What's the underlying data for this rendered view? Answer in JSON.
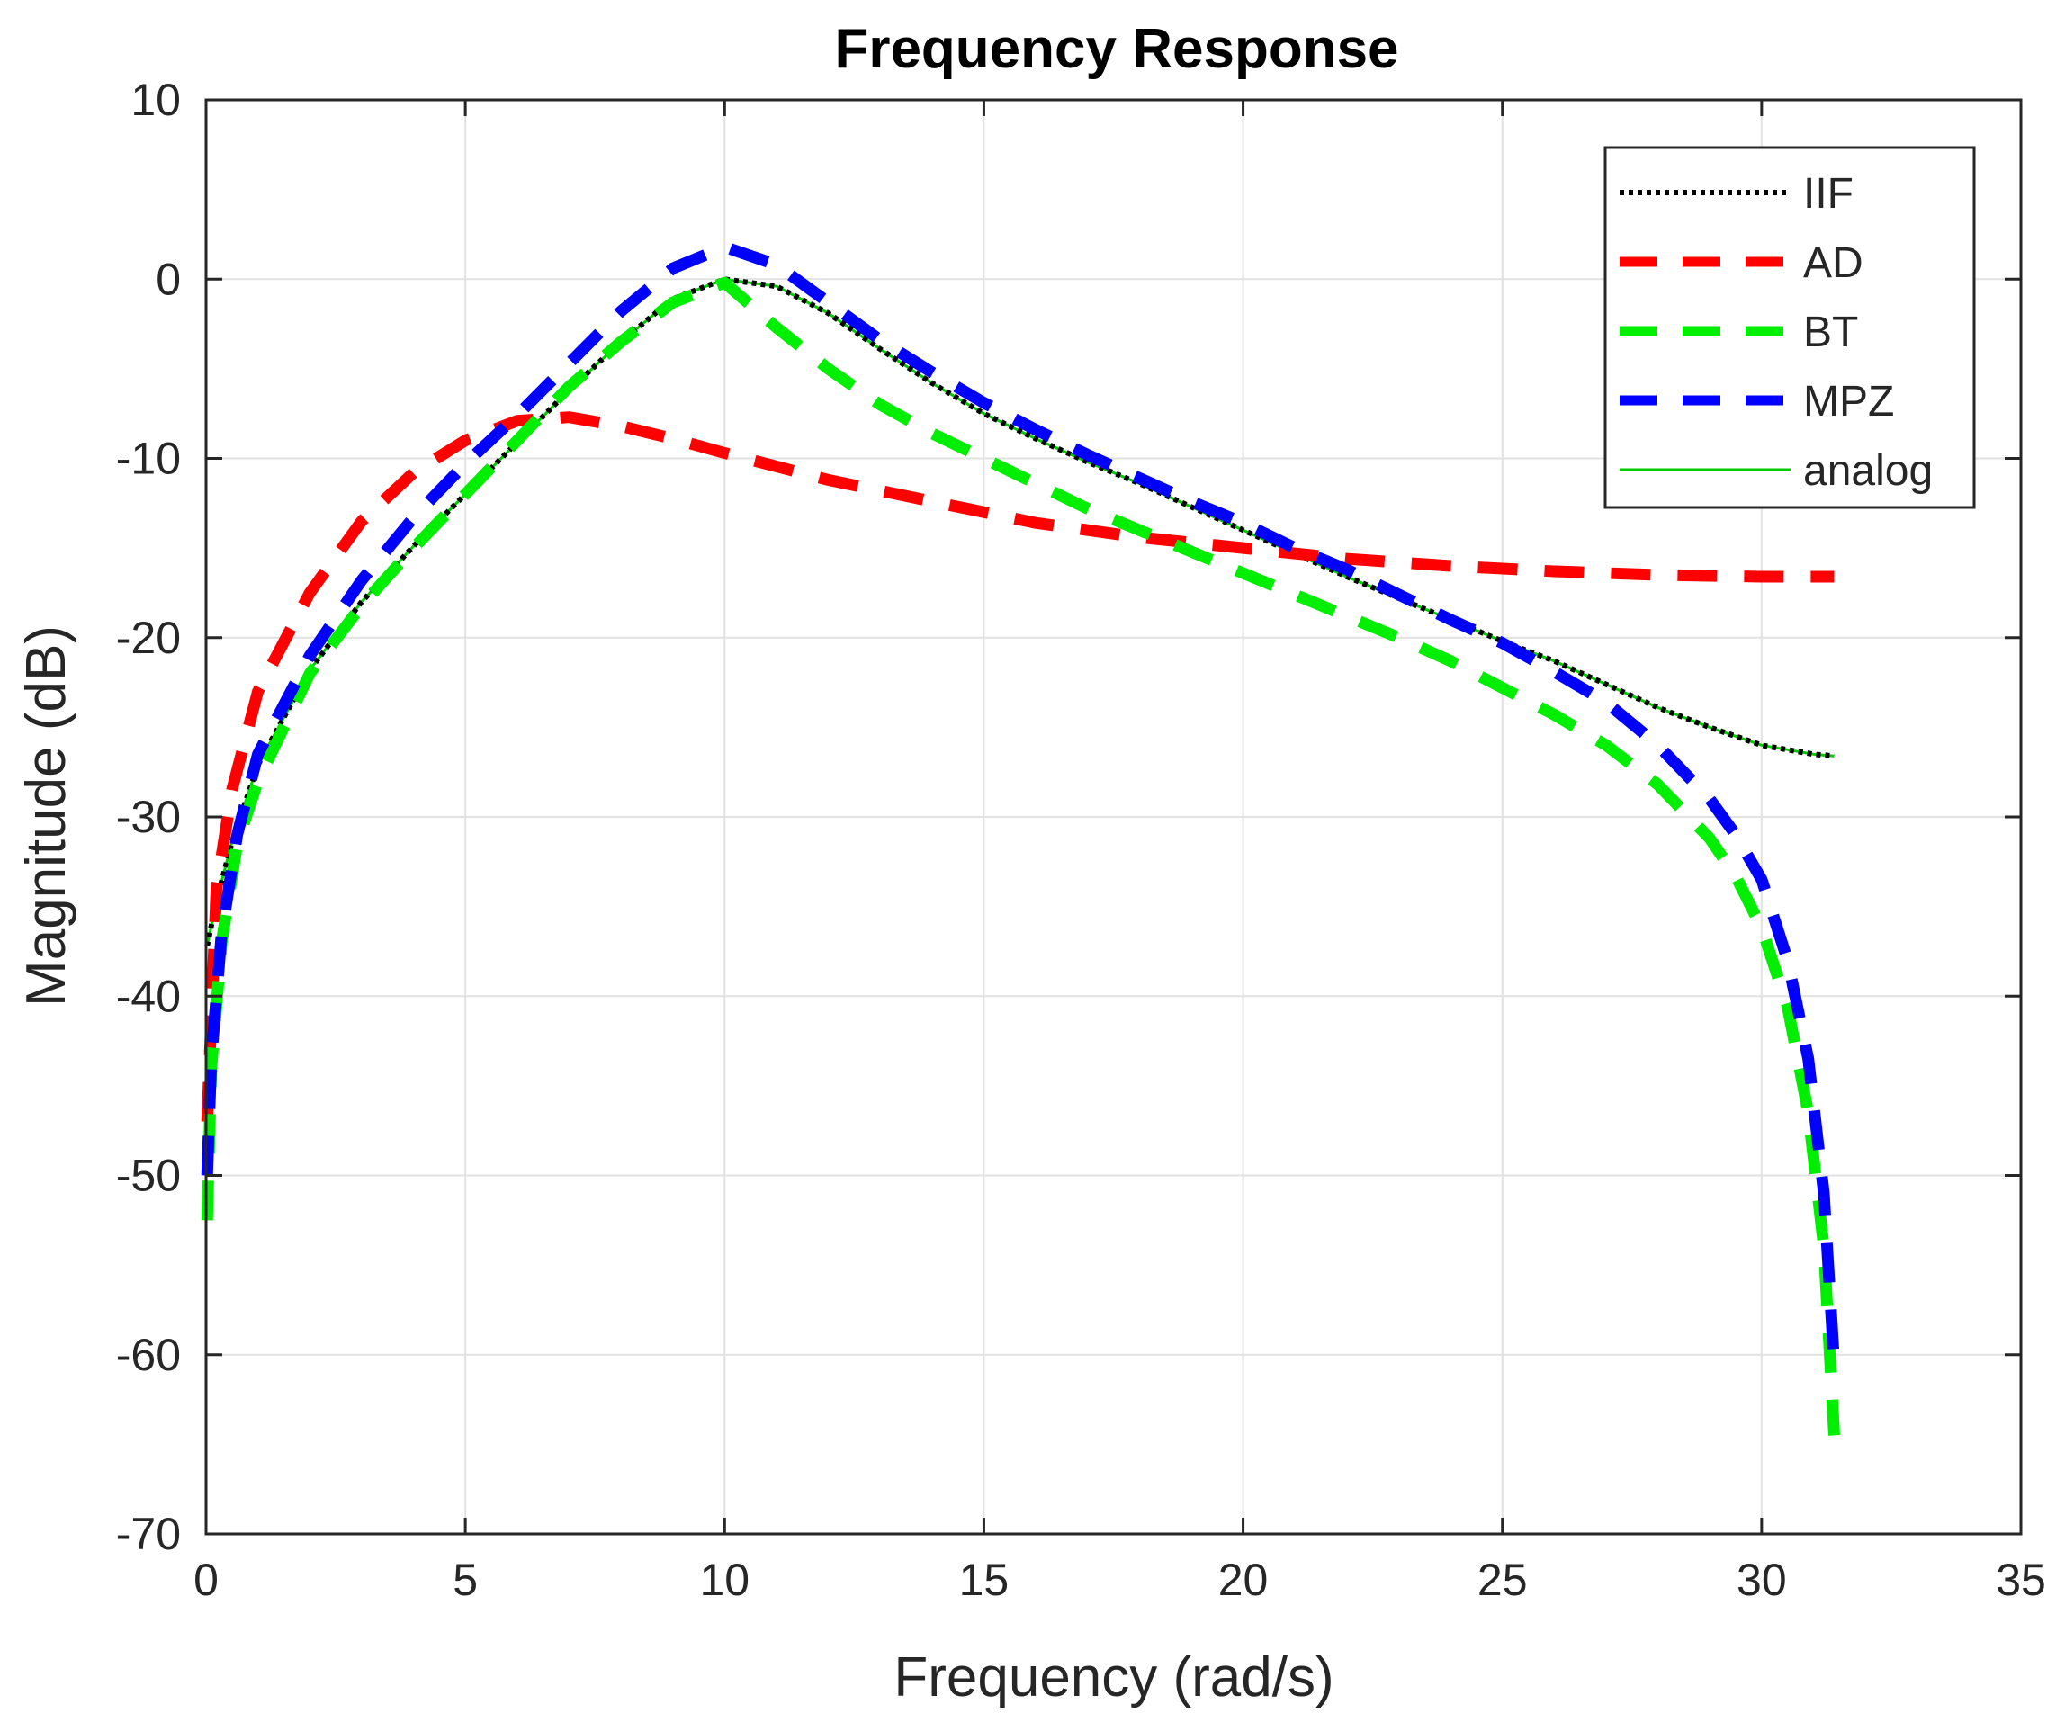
{
  "chart_data": {
    "type": "line",
    "title": "Frequency Response",
    "xlabel": "Frequency (rad/s)",
    "ylabel": "Magnitude (dB)",
    "xlim": [
      0,
      35
    ],
    "ylim": [
      -70,
      10
    ],
    "x_ticks": [
      0,
      5,
      10,
      15,
      20,
      25,
      30,
      35
    ],
    "y_ticks": [
      10,
      0,
      -10,
      -20,
      -30,
      -40,
      -50,
      -60,
      -70
    ],
    "grid": true,
    "legend_position": "top-right",
    "series": [
      {
        "name": "analog",
        "color": "#00cc00",
        "style": "solid",
        "x": [
          0.02,
          0.2,
          0.5,
          1,
          2,
          3,
          4,
          5,
          6,
          7,
          8,
          9,
          10,
          11,
          12,
          13,
          14,
          15,
          16,
          17,
          18,
          19,
          20,
          21,
          22,
          23,
          24,
          25,
          26,
          27,
          28,
          29,
          30,
          31,
          31.4
        ],
        "values": [
          -37.2,
          -34.7,
          -31.4,
          -27.1,
          -21.8,
          -18.0,
          -14.9,
          -12.0,
          -9.1,
          -6.2,
          -3.5,
          -1.1,
          0.0,
          -0.4,
          -1.9,
          -3.9,
          -5.8,
          -7.5,
          -8.9,
          -10.2,
          -11.4,
          -12.7,
          -14.0,
          -15.3,
          -16.6,
          -17.8,
          -19.0,
          -20.2,
          -21.3,
          -22.6,
          -23.9,
          -25.0,
          -26.0,
          -26.5,
          -26.6
        ]
      },
      {
        "name": "IIF",
        "color": "#000000",
        "style": "dotted",
        "x": [
          0.02,
          0.2,
          0.5,
          1,
          2,
          3,
          4,
          5,
          6,
          7,
          8,
          9,
          10,
          11,
          12,
          13,
          14,
          15,
          16,
          17,
          18,
          19,
          20,
          21,
          22,
          23,
          24,
          25,
          26,
          27,
          28,
          29,
          30,
          31,
          31.4
        ],
        "values": [
          -37.2,
          -34.7,
          -31.4,
          -27.1,
          -21.8,
          -18.0,
          -14.9,
          -12.0,
          -9.1,
          -6.2,
          -3.5,
          -1.1,
          0.0,
          -0.4,
          -1.9,
          -3.9,
          -5.8,
          -7.5,
          -8.9,
          -10.2,
          -11.4,
          -12.7,
          -14.0,
          -15.3,
          -16.6,
          -17.8,
          -19.0,
          -20.2,
          -21.3,
          -22.6,
          -23.9,
          -25.0,
          -26.0,
          -26.5,
          -26.6
        ]
      },
      {
        "name": "AD",
        "color": "#ff0000",
        "style": "dashed",
        "x": [
          0.02,
          0.2,
          0.5,
          1,
          2,
          3,
          4,
          5,
          6,
          7,
          8,
          9,
          10,
          12,
          14,
          16,
          18,
          20,
          22,
          24,
          26,
          28,
          30,
          31.4
        ],
        "values": [
          -47.0,
          -34.0,
          -28.5,
          -23.0,
          -17.5,
          -13.5,
          -10.8,
          -9.0,
          -7.9,
          -7.7,
          -8.2,
          -8.9,
          -9.7,
          -11.2,
          -12.4,
          -13.6,
          -14.4,
          -15.0,
          -15.6,
          -16.0,
          -16.3,
          -16.5,
          -16.6,
          -16.6
        ]
      },
      {
        "name": "BT",
        "color": "#00ee00",
        "style": "dashed",
        "x": [
          0.02,
          0.1,
          0.3,
          0.6,
          1,
          2,
          3,
          4,
          5,
          6,
          7,
          8,
          9,
          10,
          11,
          12,
          13,
          14,
          15,
          16,
          17,
          18,
          19,
          20,
          21,
          22,
          23,
          24,
          25,
          26,
          27,
          28,
          29,
          29.5,
          30,
          30.5,
          30.9,
          31.2,
          31.4
        ],
        "values": [
          -52.5,
          -44.0,
          -37.0,
          -31.5,
          -28.0,
          -22.0,
          -18.2,
          -15.0,
          -12.0,
          -9.0,
          -6.0,
          -3.5,
          -1.3,
          -0.2,
          -2.7,
          -5.0,
          -7.0,
          -8.6,
          -10.0,
          -11.4,
          -12.8,
          -14.0,
          -15.2,
          -16.4,
          -17.6,
          -18.8,
          -20.0,
          -21.3,
          -22.8,
          -24.3,
          -26.0,
          -28.2,
          -31.2,
          -33.3,
          -36.2,
          -40.6,
          -46.5,
          -54.0,
          -64.5
        ]
      },
      {
        "name": "MPZ",
        "color": "#0000ff",
        "style": "dashed",
        "x": [
          0.02,
          0.1,
          0.3,
          0.6,
          1,
          2,
          3,
          4,
          5,
          6,
          7,
          8,
          9,
          10,
          11,
          12,
          13,
          14,
          15,
          16,
          17,
          18,
          19,
          20,
          21,
          22,
          23,
          24,
          25,
          26,
          27,
          28,
          29,
          29.5,
          30,
          30.5,
          30.9,
          31.2,
          31.4
        ],
        "values": [
          -50.0,
          -43.5,
          -36.5,
          -31.0,
          -26.5,
          -21.0,
          -16.8,
          -13.3,
          -10.3,
          -7.6,
          -4.7,
          -1.8,
          0.6,
          1.8,
          0.8,
          -1.3,
          -3.4,
          -5.2,
          -6.9,
          -8.4,
          -9.8,
          -11.1,
          -12.4,
          -13.6,
          -15.0,
          -16.2,
          -17.6,
          -19.0,
          -20.3,
          -21.9,
          -23.6,
          -26.0,
          -29.0,
          -31.0,
          -33.5,
          -38.0,
          -43.5,
          -51.0,
          -60.5
        ]
      }
    ],
    "legend": [
      {
        "label": "IIF",
        "color": "#000000",
        "style": "dotted"
      },
      {
        "label": "AD",
        "color": "#ff0000",
        "style": "dashed"
      },
      {
        "label": "BT",
        "color": "#00ee00",
        "style": "dashed"
      },
      {
        "label": "MPZ",
        "color": "#0000ff",
        "style": "dashed"
      },
      {
        "label": "analog",
        "color": "#00cc00",
        "style": "solid"
      }
    ]
  }
}
